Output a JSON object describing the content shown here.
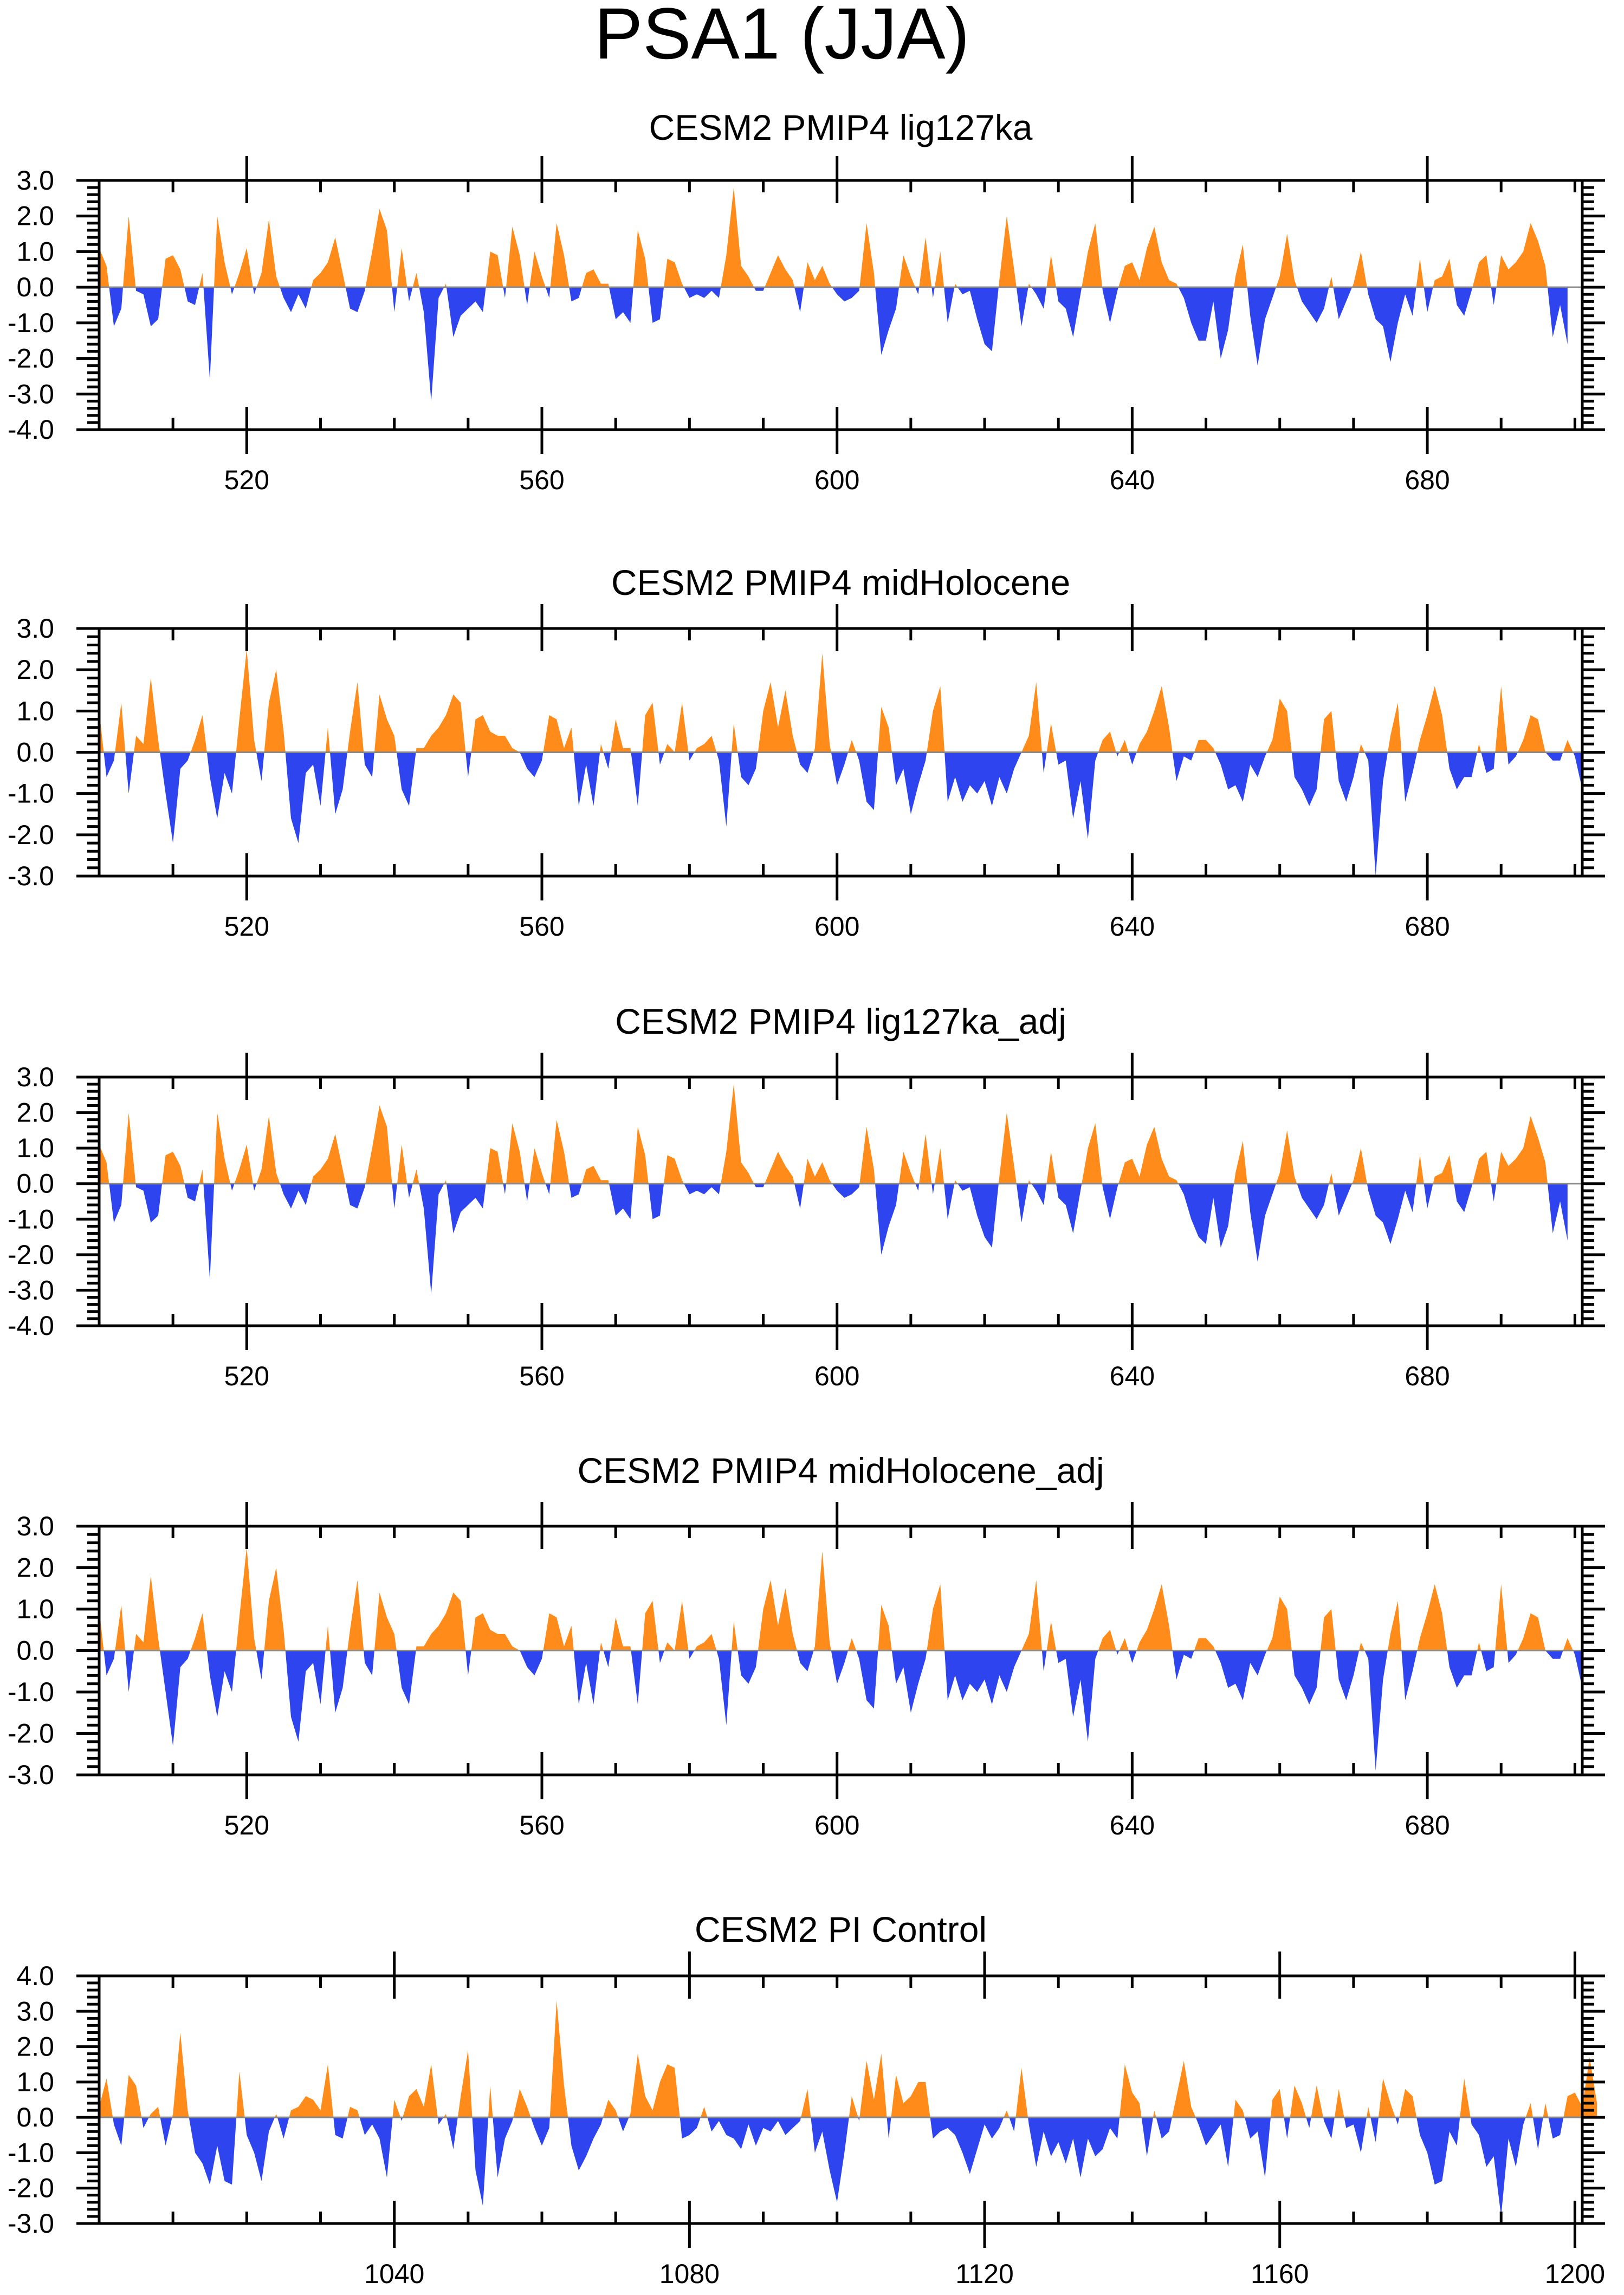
{
  "chart_data": {
    "title": "PSA1 (JJA)",
    "type": "area",
    "colors": {
      "positive": "#ff8c1a",
      "negative": "#2e44ee",
      "axis": "#000000",
      "zero_line": "#888888"
    },
    "panels": [
      {
        "title": "CESM2 PMIP4 lig127ka",
        "xlim": [
          500,
          701
        ],
        "ylim": [
          -4,
          3
        ],
        "x_ticks": [
          520,
          560,
          600,
          640,
          680
        ],
        "y_ticks": [
          "3.0",
          "2.0",
          "1.0",
          "0.0",
          "-1.0",
          "-2.0",
          "-3.0",
          "-4.0"
        ],
        "x_start": 500,
        "values": [
          1.1,
          0.6,
          -1.1,
          -0.6,
          2.0,
          -0.1,
          -0.2,
          -1.1,
          -0.9,
          0.8,
          0.9,
          0.5,
          -0.4,
          -0.5,
          0.4,
          -2.6,
          2.0,
          0.7,
          -0.2,
          0.4,
          1.1,
          -0.2,
          0.4,
          1.9,
          0.3,
          -0.3,
          -0.7,
          -0.2,
          -0.6,
          0.2,
          0.4,
          0.7,
          1.4,
          0.4,
          -0.6,
          -0.7,
          -0.1,
          1.0,
          2.2,
          1.6,
          -0.7,
          1.1,
          -0.4,
          0.4,
          -0.7,
          -3.2,
          -0.3,
          0.1,
          -1.4,
          -0.8,
          -0.6,
          -0.4,
          -0.7,
          1.0,
          0.9,
          -0.3,
          1.7,
          0.9,
          -0.5,
          1.0,
          0.3,
          -0.3,
          1.8,
          0.9,
          -0.4,
          -0.3,
          0.4,
          0.5,
          0.1,
          0.1,
          -0.9,
          -0.7,
          -1.0,
          1.6,
          0.8,
          -1.0,
          -0.9,
          0.8,
          0.7,
          0.1,
          -0.3,
          -0.2,
          -0.3,
          -0.1,
          -0.3,
          0.9,
          2.8,
          0.6,
          0.3,
          -0.1,
          -0.1,
          0.4,
          0.9,
          0.5,
          0.2,
          -0.7,
          0.7,
          0.2,
          0.6,
          0.1,
          -0.2,
          -0.4,
          -0.3,
          -0.1,
          1.8,
          0.4,
          -1.9,
          -1.2,
          -0.6,
          0.9,
          0.3,
          -0.2,
          1.4,
          -0.3,
          1.0,
          -1.0,
          0.1,
          -0.2,
          -0.1,
          -0.9,
          -1.6,
          -1.8,
          0.2,
          2.0,
          0.5,
          -1.1,
          0.1,
          -0.2,
          -0.6,
          0.9,
          -0.4,
          -0.6,
          -1.4,
          -0.2,
          1.0,
          1.8,
          -0.1,
          -1.0,
          -0.1,
          0.6,
          0.7,
          0.2,
          1.1,
          1.7,
          0.7,
          0.2,
          0.1,
          -0.3,
          -1.0,
          -1.5,
          -1.5,
          -0.4,
          -2.0,
          -1.2,
          0.3,
          1.2,
          -0.8,
          -2.2,
          -0.9,
          -0.3,
          0.3,
          1.5,
          0.2,
          -0.4,
          -0.7,
          -1.0,
          -0.6,
          0.3,
          -0.9,
          -0.4,
          0.1,
          1.0,
          -0.2,
          -0.9,
          -1.1,
          -2.1,
          -1.0,
          -0.2,
          -0.8,
          0.8,
          -0.7,
          0.2,
          0.3,
          0.8,
          -0.5,
          -0.8,
          -0.1,
          0.7,
          0.9,
          -0.5,
          0.9,
          0.5,
          0.7,
          1.0,
          1.8,
          1.3,
          0.6,
          -1.4,
          -0.5,
          -1.6
        ]
      },
      {
        "title": "CESM2 PMIP4 midHolocene",
        "xlim": [
          500,
          701
        ],
        "ylim": [
          -3,
          3
        ],
        "x_ticks": [
          520,
          560,
          600,
          640,
          680
        ],
        "y_ticks": [
          "3.0",
          "2.0",
          "1.0",
          "0.0",
          "-1.0",
          "-2.0",
          "-3.0"
        ],
        "x_start": 500,
        "values": [
          1.0,
          -0.6,
          -0.2,
          1.2,
          -1.0,
          0.4,
          0.2,
          1.8,
          0.3,
          -1.0,
          -2.2,
          -0.4,
          -0.2,
          0.3,
          0.9,
          -0.6,
          -1.6,
          -0.5,
          -1.0,
          0.8,
          2.5,
          0.3,
          -0.7,
          1.2,
          2.0,
          0.5,
          -1.6,
          -2.2,
          -0.5,
          -0.3,
          -1.3,
          0.6,
          -1.5,
          -0.9,
          0.5,
          1.7,
          -0.3,
          -0.6,
          1.4,
          0.8,
          0.4,
          -0.9,
          -1.3,
          0.1,
          0.1,
          0.4,
          0.6,
          0.9,
          1.4,
          1.2,
          -0.6,
          0.8,
          0.9,
          0.5,
          0.4,
          0.4,
          0.1,
          0.0,
          -0.4,
          -0.6,
          -0.2,
          0.9,
          0.8,
          0.1,
          0.6,
          -1.3,
          -0.3,
          -1.3,
          0.2,
          -0.4,
          0.8,
          0.1,
          0.1,
          -1.3,
          0.9,
          1.2,
          -0.3,
          0.2,
          0.0,
          1.2,
          -0.2,
          0.1,
          0.2,
          0.4,
          -0.2,
          -1.8,
          0.7,
          -0.6,
          -0.8,
          -0.4,
          1.0,
          1.7,
          0.6,
          1.5,
          0.4,
          -0.3,
          -0.5,
          0.1,
          2.4,
          0.2,
          -0.8,
          -0.3,
          0.3,
          -0.2,
          -1.2,
          -1.4,
          1.1,
          0.6,
          -0.8,
          -0.4,
          -1.5,
          -0.8,
          -0.2,
          1.0,
          1.6,
          -1.2,
          -0.6,
          -1.2,
          -0.8,
          -1.0,
          -0.7,
          -1.3,
          -0.6,
          -1.0,
          -0.4,
          0.0,
          0.4,
          1.7,
          -0.5,
          0.7,
          -0.3,
          -0.2,
          -1.6,
          -0.7,
          -2.1,
          -0.2,
          0.3,
          0.5,
          -0.1,
          0.3,
          -0.3,
          0.2,
          0.5,
          1.0,
          1.6,
          0.6,
          -0.7,
          -0.1,
          -0.2,
          0.3,
          0.3,
          0.1,
          -0.3,
          -0.9,
          -0.8,
          -1.2,
          -0.3,
          -0.6,
          -0.1,
          0.3,
          1.3,
          1.0,
          -0.6,
          -0.9,
          -1.3,
          -0.9,
          0.8,
          1.0,
          -0.7,
          -1.2,
          -0.6,
          0.2,
          -0.2,
          -3.0,
          -0.7,
          0.4,
          1.2,
          -1.2,
          -0.5,
          0.3,
          0.9,
          1.6,
          0.9,
          -0.4,
          -0.9,
          -0.6,
          -0.6,
          0.2,
          -0.5,
          -0.4,
          1.6,
          -0.3,
          -0.1,
          0.3,
          0.9,
          0.8,
          0.0,
          -0.2,
          -0.2,
          0.3,
          -0.1,
          -0.9
        ]
      },
      {
        "title": "CESM2 PMIP4 lig127ka_adj",
        "xlim": [
          500,
          701
        ],
        "ylim": [
          -4,
          3
        ],
        "x_ticks": [
          520,
          560,
          600,
          640,
          680
        ],
        "y_ticks": [
          "3.0",
          "2.0",
          "1.0",
          "0.0",
          "-1.0",
          "-2.0",
          "-3.0",
          "-4.0"
        ],
        "x_start": 500,
        "values": [
          1.1,
          0.6,
          -1.1,
          -0.6,
          2.0,
          -0.1,
          -0.2,
          -1.1,
          -0.9,
          0.8,
          0.9,
          0.5,
          -0.4,
          -0.5,
          0.4,
          -2.7,
          2.0,
          0.7,
          -0.2,
          0.4,
          1.1,
          -0.2,
          0.4,
          1.9,
          0.3,
          -0.3,
          -0.7,
          -0.2,
          -0.6,
          0.2,
          0.4,
          0.7,
          1.4,
          0.4,
          -0.6,
          -0.7,
          -0.1,
          1.0,
          2.2,
          1.6,
          -0.7,
          1.1,
          -0.4,
          0.4,
          -0.7,
          -3.1,
          -0.3,
          0.1,
          -1.4,
          -0.8,
          -0.6,
          -0.4,
          -0.7,
          1.0,
          0.9,
          -0.3,
          1.7,
          0.9,
          -0.5,
          1.0,
          0.3,
          -0.3,
          1.8,
          0.9,
          -0.4,
          -0.3,
          0.4,
          0.5,
          0.1,
          0.1,
          -0.9,
          -0.7,
          -1.0,
          1.6,
          0.8,
          -1.0,
          -0.9,
          0.8,
          0.7,
          0.1,
          -0.3,
          -0.2,
          -0.3,
          -0.1,
          -0.3,
          0.9,
          2.8,
          0.6,
          0.3,
          -0.1,
          -0.1,
          0.4,
          0.9,
          0.5,
          0.2,
          -0.7,
          0.7,
          0.2,
          0.6,
          0.1,
          -0.2,
          -0.4,
          -0.3,
          -0.1,
          1.6,
          0.4,
          -2.0,
          -1.2,
          -0.6,
          0.9,
          0.3,
          -0.2,
          1.4,
          -0.3,
          1.0,
          -1.0,
          0.1,
          -0.2,
          -0.1,
          -0.9,
          -1.5,
          -1.8,
          0.2,
          2.0,
          0.5,
          -1.1,
          0.1,
          -0.2,
          -0.6,
          0.9,
          -0.4,
          -0.6,
          -1.4,
          -0.2,
          1.0,
          1.7,
          -0.1,
          -1.0,
          -0.1,
          0.6,
          0.7,
          0.2,
          1.1,
          1.6,
          0.7,
          0.2,
          0.1,
          -0.3,
          -1.0,
          -1.5,
          -1.7,
          -0.4,
          -1.8,
          -1.2,
          0.3,
          1.2,
          -0.8,
          -2.2,
          -0.9,
          -0.3,
          0.3,
          1.5,
          0.2,
          -0.4,
          -0.7,
          -1.0,
          -0.6,
          0.3,
          -0.9,
          -0.4,
          0.1,
          1.0,
          -0.2,
          -0.9,
          -1.1,
          -1.7,
          -1.0,
          -0.2,
          -0.8,
          0.8,
          -0.7,
          0.2,
          0.3,
          0.8,
          -0.5,
          -0.8,
          -0.1,
          0.7,
          0.9,
          -0.5,
          0.9,
          0.5,
          0.7,
          1.0,
          1.9,
          1.3,
          0.6,
          -1.4,
          -0.5,
          -1.6
        ]
      },
      {
        "title": "CESM2 PMIP4 midHolocene_adj",
        "xlim": [
          500,
          701
        ],
        "ylim": [
          -3,
          3
        ],
        "x_ticks": [
          520,
          560,
          600,
          640,
          680
        ],
        "y_ticks": [
          "3.0",
          "2.0",
          "1.0",
          "0.0",
          "-1.0",
          "-2.0",
          "-3.0"
        ],
        "x_start": 500,
        "values": [
          1.0,
          -0.6,
          -0.2,
          1.1,
          -1.0,
          0.4,
          0.2,
          1.8,
          0.3,
          -1.0,
          -2.3,
          -0.4,
          -0.2,
          0.3,
          0.9,
          -0.6,
          -1.6,
          -0.5,
          -1.0,
          0.8,
          2.5,
          0.3,
          -0.7,
          1.2,
          2.0,
          0.5,
          -1.6,
          -2.2,
          -0.5,
          -0.3,
          -1.3,
          0.6,
          -1.5,
          -0.9,
          0.5,
          1.7,
          -0.3,
          -0.6,
          1.4,
          0.8,
          0.4,
          -0.9,
          -1.3,
          0.1,
          0.1,
          0.4,
          0.6,
          0.9,
          1.4,
          1.2,
          -0.6,
          0.8,
          0.9,
          0.5,
          0.4,
          0.4,
          0.1,
          0.0,
          -0.4,
          -0.6,
          -0.2,
          0.9,
          0.8,
          0.1,
          0.6,
          -1.3,
          -0.3,
          -1.3,
          0.2,
          -0.4,
          0.8,
          0.1,
          0.1,
          -1.3,
          0.9,
          1.2,
          -0.3,
          0.2,
          0.0,
          1.2,
          -0.2,
          0.1,
          0.2,
          0.4,
          -0.2,
          -1.8,
          0.7,
          -0.6,
          -0.8,
          -0.4,
          1.0,
          1.7,
          0.6,
          1.5,
          0.4,
          -0.3,
          -0.5,
          0.1,
          2.4,
          0.2,
          -0.8,
          -0.3,
          0.3,
          -0.2,
          -1.2,
          -1.4,
          1.1,
          0.6,
          -0.8,
          -0.4,
          -1.5,
          -0.8,
          -0.2,
          1.0,
          1.6,
          -1.2,
          -0.6,
          -1.2,
          -0.8,
          -1.0,
          -0.7,
          -1.3,
          -0.6,
          -1.0,
          -0.4,
          0.0,
          0.4,
          1.7,
          -0.5,
          0.7,
          -0.3,
          -0.2,
          -1.6,
          -0.7,
          -2.2,
          -0.2,
          0.3,
          0.5,
          -0.1,
          0.3,
          -0.3,
          0.2,
          0.5,
          1.0,
          1.6,
          0.6,
          -0.7,
          -0.1,
          -0.2,
          0.3,
          0.3,
          0.1,
          -0.3,
          -0.9,
          -0.8,
          -1.2,
          -0.3,
          -0.6,
          -0.1,
          0.3,
          1.3,
          1.0,
          -0.6,
          -0.9,
          -1.3,
          -0.9,
          0.8,
          1.0,
          -0.7,
          -1.2,
          -0.6,
          0.2,
          -0.2,
          -2.9,
          -0.7,
          0.4,
          1.2,
          -1.2,
          -0.5,
          0.3,
          0.9,
          1.6,
          0.9,
          -0.4,
          -0.9,
          -0.6,
          -0.6,
          0.2,
          -0.5,
          -0.4,
          1.6,
          -0.3,
          -0.1,
          0.3,
          0.9,
          0.8,
          0.0,
          -0.2,
          -0.2,
          0.3,
          -0.1,
          -0.9
        ]
      },
      {
        "title": "CESM2 PI Control",
        "xlim": [
          1000,
          1201
        ],
        "ylim": [
          -3,
          4
        ],
        "x_ticks": [
          1040,
          1080,
          1120,
          1160,
          1200
        ],
        "y_ticks": [
          "4.0",
          "3.0",
          "2.0",
          "1.0",
          "0.0",
          "-1.0",
          "-2.0",
          "-3.0"
        ],
        "x_start": 1000,
        "values": [
          0.3,
          1.1,
          -0.2,
          -0.8,
          1.2,
          0.9,
          -0.3,
          0.1,
          0.3,
          -0.8,
          0.1,
          2.4,
          0.2,
          -1.0,
          -1.3,
          -1.9,
          -0.8,
          -1.8,
          -1.9,
          1.3,
          -0.5,
          -1.0,
          -1.8,
          -0.4,
          0.1,
          -0.6,
          0.2,
          0.3,
          0.6,
          0.5,
          0.2,
          1.5,
          -0.5,
          -0.6,
          0.3,
          0.2,
          -0.5,
          -0.2,
          -0.6,
          -1.7,
          0.5,
          -0.1,
          0.6,
          0.8,
          0.3,
          1.5,
          -0.2,
          0.1,
          -0.9,
          0.6,
          1.9,
          -1.5,
          -2.5,
          0.9,
          -1.7,
          -0.6,
          -0.1,
          0.8,
          0.3,
          -0.3,
          -0.8,
          -0.3,
          3.3,
          0.9,
          -0.8,
          -1.5,
          -1.1,
          -0.6,
          -0.2,
          0.5,
          0.2,
          -0.4,
          0.1,
          1.8,
          0.6,
          0.2,
          1.0,
          1.5,
          1.4,
          -0.6,
          -0.5,
          -0.3,
          0.3,
          -0.4,
          -0.1,
          -0.5,
          -0.6,
          -0.9,
          -0.2,
          -0.8,
          -0.3,
          -0.4,
          -0.1,
          -0.5,
          -0.3,
          -0.1,
          0.8,
          -1.0,
          -0.4,
          -1.5,
          -2.4,
          -1.0,
          0.6,
          -0.1,
          1.6,
          0.5,
          1.8,
          -0.6,
          1.2,
          0.4,
          0.6,
          1.0,
          1.0,
          -0.6,
          -0.4,
          -0.3,
          -0.5,
          -1.0,
          -1.6,
          -0.9,
          -0.2,
          -0.6,
          -0.3,
          0.2,
          -0.4,
          1.4,
          -0.2,
          -1.4,
          -0.4,
          -1.1,
          -0.7,
          -1.3,
          -0.6,
          -1.7,
          -0.6,
          -1.1,
          -0.9,
          -0.3,
          -0.6,
          1.5,
          0.7,
          0.4,
          -1.1,
          0.2,
          -0.6,
          -0.4,
          0.6,
          1.6,
          0.3,
          -0.2,
          -0.8,
          -0.5,
          -0.2,
          -1.4,
          0.5,
          0.2,
          -0.6,
          -0.4,
          -1.7,
          0.5,
          0.8,
          -0.6,
          0.9,
          0.4,
          -0.3,
          0.9,
          -0.1,
          -0.6,
          0.8,
          -0.3,
          -0.2,
          -1.0,
          0.3,
          -0.7,
          1.1,
          0.4,
          -0.2,
          0.8,
          0.6,
          -0.5,
          -1.0,
          -1.9,
          -1.8,
          -0.4,
          -0.8,
          1.1,
          -0.2,
          -0.5,
          -1.4,
          -1.1,
          -2.8,
          -0.6,
          -1.4,
          -0.2,
          0.4,
          -0.9,
          0.4,
          -0.6,
          -0.5,
          0.6,
          0.7,
          0.3,
          1.7,
          0.4
        ]
      }
    ]
  }
}
